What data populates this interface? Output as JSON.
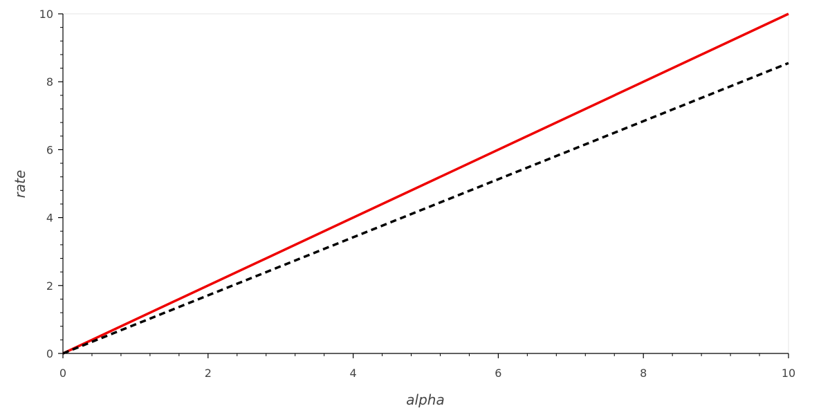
{
  "chart_data": {
    "type": "line",
    "xlabel": "alpha",
    "ylabel": "rate",
    "x": [
      0,
      10
    ],
    "series": [
      {
        "color": "#ee0000",
        "dash": "solid",
        "values": [
          0,
          10
        ]
      },
      {
        "color": "#000000",
        "dash": "dashed",
        "values": [
          0,
          8.55
        ]
      }
    ],
    "xlim": [
      0,
      10
    ],
    "ylim": [
      0,
      10
    ],
    "xticks": [
      0,
      2,
      4,
      6,
      8,
      10
    ],
    "yticks": [
      0,
      2,
      4,
      6,
      8,
      10
    ],
    "minor_ticks_per_interval": 5,
    "grid": false
  }
}
